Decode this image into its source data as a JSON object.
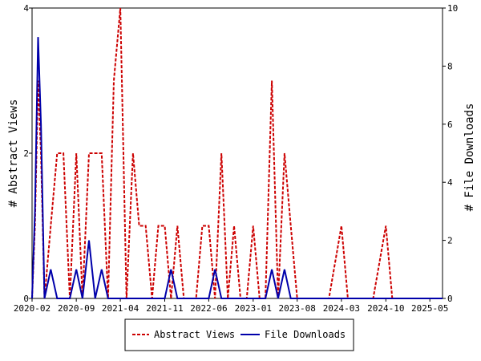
{
  "chart_data": {
    "type": "line",
    "title": "",
    "ylabel_left": "# Abstract Views",
    "ylabel_right": "# File Downloads",
    "x_tick_labels": [
      "2020-02",
      "2020-09",
      "2021-04",
      "2021-11",
      "2022-06",
      "2023-01",
      "2023-08",
      "2024-03",
      "2024-10",
      "2025-05"
    ],
    "x_range": [
      "2020-02",
      "2025-07"
    ],
    "ylim_left": [
      0,
      4
    ],
    "ylim_right": [
      0,
      10
    ],
    "y_ticks_left": [
      0,
      2,
      4
    ],
    "y_ticks_right": [
      0,
      2,
      4,
      6,
      8,
      10
    ],
    "legend": {
      "placement": "bottom-center"
    },
    "series": [
      {
        "name": "Abstract Views",
        "axis": "left",
        "color": "#cc0000",
        "style": "dashed",
        "points": [
          [
            "2020-02-01",
            0
          ],
          [
            "2020-02-15",
            1
          ],
          [
            "2020-03-01",
            3
          ],
          [
            "2020-03-15",
            2
          ],
          [
            "2020-04-01",
            0
          ],
          [
            "2020-05-01",
            1
          ],
          [
            "2020-06-01",
            2
          ],
          [
            "2020-07-01",
            2
          ],
          [
            "2020-08-01",
            0
          ],
          [
            "2020-09-01",
            2
          ],
          [
            "2020-10-01",
            0
          ],
          [
            "2020-11-01",
            2
          ],
          [
            "2020-12-01",
            2
          ],
          [
            "2021-01-01",
            2
          ],
          [
            "2021-02-01",
            0
          ],
          [
            "2021-03-01",
            3
          ],
          [
            "2021-04-01",
            4
          ],
          [
            "2021-05-01",
            0
          ],
          [
            "2021-06-01",
            2
          ],
          [
            "2021-07-01",
            1
          ],
          [
            "2021-08-01",
            1
          ],
          [
            "2021-09-01",
            0
          ],
          [
            "2021-10-01",
            1
          ],
          [
            "2021-11-01",
            1
          ],
          [
            "2021-12-01",
            0
          ],
          [
            "2022-01-01",
            1
          ],
          [
            "2022-02-01",
            0
          ],
          [
            "2022-03-01",
            0
          ],
          [
            "2022-04-01",
            0
          ],
          [
            "2022-05-01",
            1
          ],
          [
            "2022-06-01",
            1
          ],
          [
            "2022-07-01",
            0
          ],
          [
            "2022-08-01",
            2
          ],
          [
            "2022-09-01",
            0
          ],
          [
            "2022-10-01",
            1
          ],
          [
            "2022-11-01",
            0
          ],
          [
            "2022-12-01",
            0
          ],
          [
            "2023-01-01",
            1
          ],
          [
            "2023-02-01",
            0
          ],
          [
            "2023-03-01",
            0
          ],
          [
            "2023-04-01",
            3
          ],
          [
            "2023-05-01",
            0
          ],
          [
            "2023-06-01",
            2
          ],
          [
            "2023-07-01",
            1
          ],
          [
            "2023-08-01",
            0
          ],
          [
            "2023-09-01",
            0
          ],
          [
            "2024-01-01",
            0
          ],
          [
            "2024-03-01",
            1
          ],
          [
            "2024-04-01",
            0
          ],
          [
            "2024-05-01",
            0
          ],
          [
            "2024-08-01",
            0
          ],
          [
            "2024-10-01",
            1
          ],
          [
            "2024-11-01",
            0
          ],
          [
            "2025-07-01",
            0
          ]
        ]
      },
      {
        "name": "File Downloads",
        "axis": "right",
        "color": "#0000aa",
        "style": "solid",
        "points": [
          [
            "2020-02-01",
            0
          ],
          [
            "2020-02-15",
            3
          ],
          [
            "2020-03-01",
            9
          ],
          [
            "2020-03-15",
            6
          ],
          [
            "2020-04-01",
            0
          ],
          [
            "2020-05-01",
            1
          ],
          [
            "2020-06-01",
            0
          ],
          [
            "2020-07-01",
            0
          ],
          [
            "2020-08-01",
            0
          ],
          [
            "2020-09-01",
            1
          ],
          [
            "2020-10-01",
            0
          ],
          [
            "2020-11-01",
            2
          ],
          [
            "2020-12-01",
            0
          ],
          [
            "2021-01-01",
            1
          ],
          [
            "2021-02-01",
            0
          ],
          [
            "2021-11-01",
            0
          ],
          [
            "2021-12-01",
            1
          ],
          [
            "2022-01-01",
            0
          ],
          [
            "2022-06-01",
            0
          ],
          [
            "2022-07-01",
            1
          ],
          [
            "2022-08-01",
            0
          ],
          [
            "2023-03-01",
            0
          ],
          [
            "2023-04-01",
            1
          ],
          [
            "2023-05-01",
            0
          ],
          [
            "2023-06-01",
            1
          ],
          [
            "2023-07-01",
            0
          ],
          [
            "2025-07-01",
            0
          ]
        ]
      }
    ]
  }
}
